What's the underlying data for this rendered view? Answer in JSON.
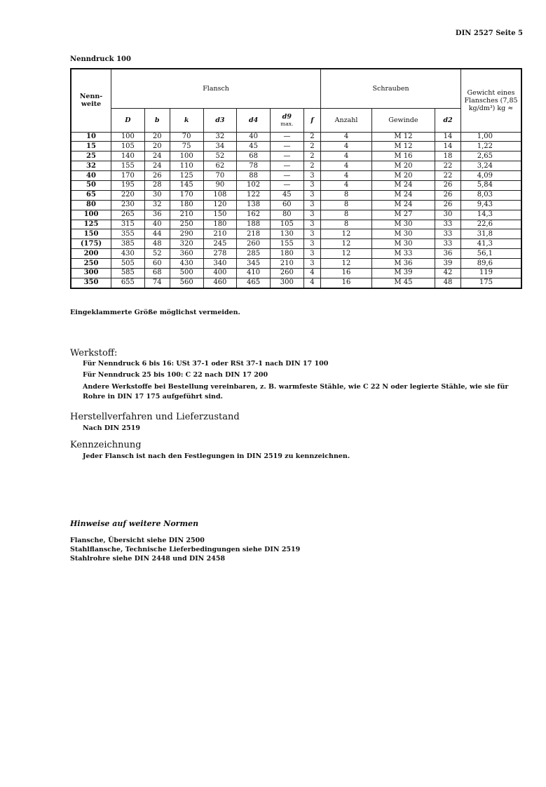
{
  "header": {
    "page_ref": "DIN 2527  Seite 5"
  },
  "section_title": "Nenndruck 100",
  "table": {
    "group_headers": {
      "nennweite": "Nenn-\nweite",
      "flansch": "Flansch",
      "schrauben": "Schrauben",
      "gewicht": "Gewicht eines Flansches (7,85 kg/dm³) kg ≈"
    },
    "columns": [
      "D",
      "b",
      "k",
      "d3",
      "d4",
      "d9",
      "f",
      "Anzahl",
      "Gewinde",
      "d2"
    ],
    "d9_note": "max.",
    "rows": [
      [
        "10",
        "100",
        "20",
        "70",
        "32",
        "40",
        "—",
        "2",
        "4",
        "M 12",
        "14",
        "1,00"
      ],
      [
        "15",
        "105",
        "20",
        "75",
        "34",
        "45",
        "—",
        "2",
        "4",
        "M 12",
        "14",
        "1,22"
      ],
      [
        "25",
        "140",
        "24",
        "100",
        "52",
        "68",
        "—",
        "2",
        "4",
        "M 16",
        "18",
        "2,65"
      ],
      [
        "32",
        "155",
        "24",
        "110",
        "62",
        "78",
        "—",
        "2",
        "4",
        "M 20",
        "22",
        "3,24"
      ],
      [
        "40",
        "170",
        "26",
        "125",
        "70",
        "88",
        "—",
        "3",
        "4",
        "M 20",
        "22",
        "4,09"
      ],
      [
        "50",
        "195",
        "28",
        "145",
        "90",
        "102",
        "—",
        "3",
        "4",
        "M 24",
        "26",
        "5,84"
      ],
      [
        "65",
        "220",
        "30",
        "170",
        "108",
        "122",
        "45",
        "3",
        "8",
        "M 24",
        "26",
        "8,03"
      ],
      [
        "80",
        "230",
        "32",
        "180",
        "120",
        "138",
        "60",
        "3",
        "8",
        "M 24",
        "26",
        "9,43"
      ],
      [
        "100",
        "265",
        "36",
        "210",
        "150",
        "162",
        "80",
        "3",
        "8",
        "M 27",
        "30",
        "14,3"
      ],
      [
        "125",
        "315",
        "40",
        "250",
        "180",
        "188",
        "105",
        "3",
        "8",
        "M 30",
        "33",
        "22,6"
      ],
      [
        "150",
        "355",
        "44",
        "290",
        "210",
        "218",
        "130",
        "3",
        "12",
        "M 30",
        "33",
        "31,8"
      ],
      [
        "(175)",
        "385",
        "48",
        "320",
        "245",
        "260",
        "155",
        "3",
        "12",
        "M 30",
        "33",
        "41,3"
      ],
      [
        "200",
        "430",
        "52",
        "360",
        "278",
        "285",
        "180",
        "3",
        "12",
        "M 33",
        "36",
        "56,1"
      ],
      [
        "250",
        "505",
        "60",
        "430",
        "340",
        "345",
        "210",
        "3",
        "12",
        "M 36",
        "39",
        "89,6"
      ],
      [
        "300",
        "585",
        "68",
        "500",
        "400",
        "410",
        "260",
        "4",
        "16",
        "M 39",
        "42",
        "119"
      ],
      [
        "350",
        "655",
        "74",
        "560",
        "460",
        "465",
        "300",
        "4",
        "16",
        "M 45",
        "48",
        "175"
      ]
    ]
  },
  "note": "Eingeklammerte Größe möglichst vermeiden.",
  "werkstoff": {
    "title": "Werkstoff:",
    "lines": [
      "Für Nenndruck 6 bis 16: USt 37-1 oder RSt 37-1 nach DIN 17 100",
      "Für Nenndruck 25 bis 100: C 22 nach DIN 17 200",
      "Andere Werkstoffe bei Bestellung vereinbaren, z. B. warmfeste Stähle, wie C 22 N oder legierte Stähle, wie sie für",
      "Rohre in DIN 17 175 aufgeführt sind."
    ]
  },
  "herstell": {
    "title": "Herstellverfahren und Lieferzustand",
    "text": "Nach DIN 2519"
  },
  "kennz": {
    "title": "Kennzeichnung",
    "text": "Jeder Flansch ist nach den Festlegungen in DIN 2519 zu kennzeichnen."
  },
  "hinweise": {
    "title": "Hinweise auf weitere Normen",
    "lines": [
      "Flansche, Übersicht siehe DIN 2500",
      "Stahlflansche, Technische Lieferbedingungen siehe DIN 2519",
      "Stahlrohre siehe DIN 2448 und DIN 2458"
    ]
  }
}
